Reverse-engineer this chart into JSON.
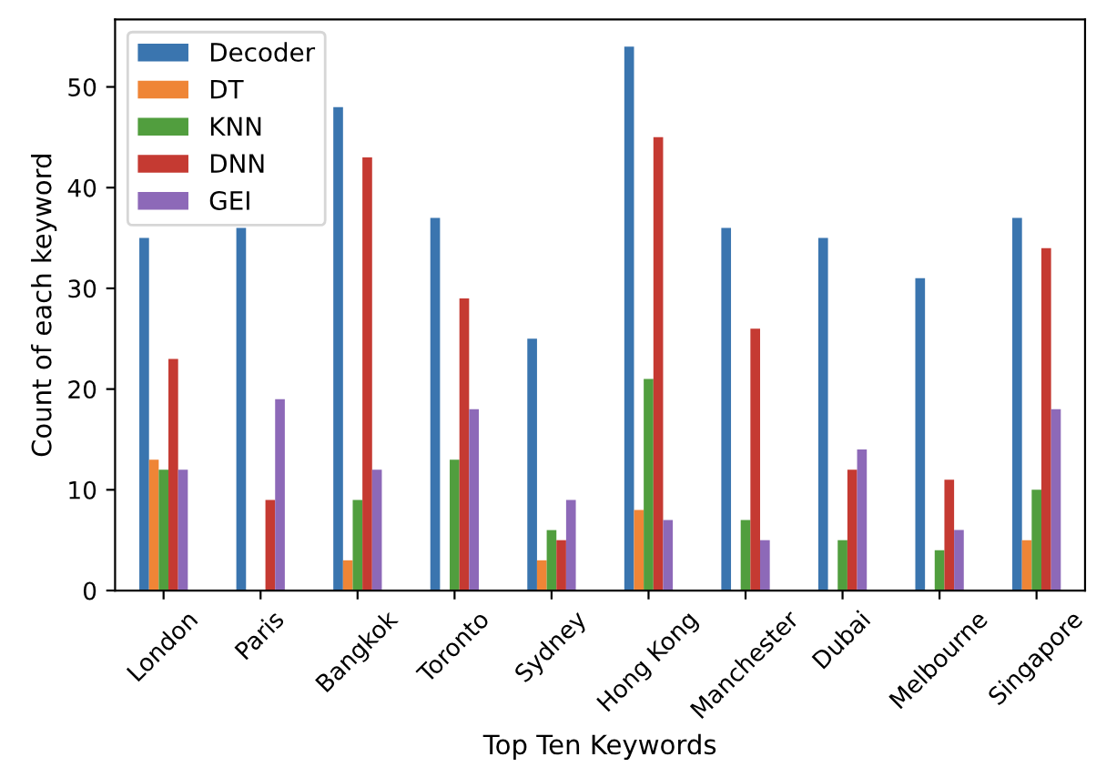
{
  "chart_data": {
    "type": "bar",
    "xlabel": "Top Ten Keywords",
    "ylabel": "Count of each keyword",
    "categories": [
      "London",
      "Paris",
      "Bangkok",
      "Toronto",
      "Sydney",
      "Hong Kong",
      "Manchester",
      "Dubai",
      "Melbourne",
      "Singapore"
    ],
    "series": [
      {
        "name": "Decoder",
        "color": "#3a75af",
        "values": [
          35,
          36,
          48,
          37,
          25,
          54,
          36,
          35,
          31,
          37
        ]
      },
      {
        "name": "DT",
        "color": "#ef8536",
        "values": [
          13,
          0,
          3,
          0,
          3,
          8,
          0,
          0,
          0,
          5
        ]
      },
      {
        "name": "KNN",
        "color": "#519e3e",
        "values": [
          12,
          0,
          9,
          13,
          6,
          21,
          7,
          5,
          4,
          10
        ]
      },
      {
        "name": "DNN",
        "color": "#c53a32",
        "values": [
          23,
          9,
          43,
          29,
          5,
          45,
          26,
          12,
          11,
          34
        ]
      },
      {
        "name": "GEI",
        "color": "#8d69b8",
        "values": [
          12,
          19,
          12,
          18,
          9,
          7,
          5,
          14,
          6,
          18
        ]
      }
    ],
    "ylim": [
      0,
      56.7
    ],
    "yticks": [
      0,
      10,
      20,
      30,
      40,
      50
    ],
    "legend": "top left",
    "grid": false
  }
}
